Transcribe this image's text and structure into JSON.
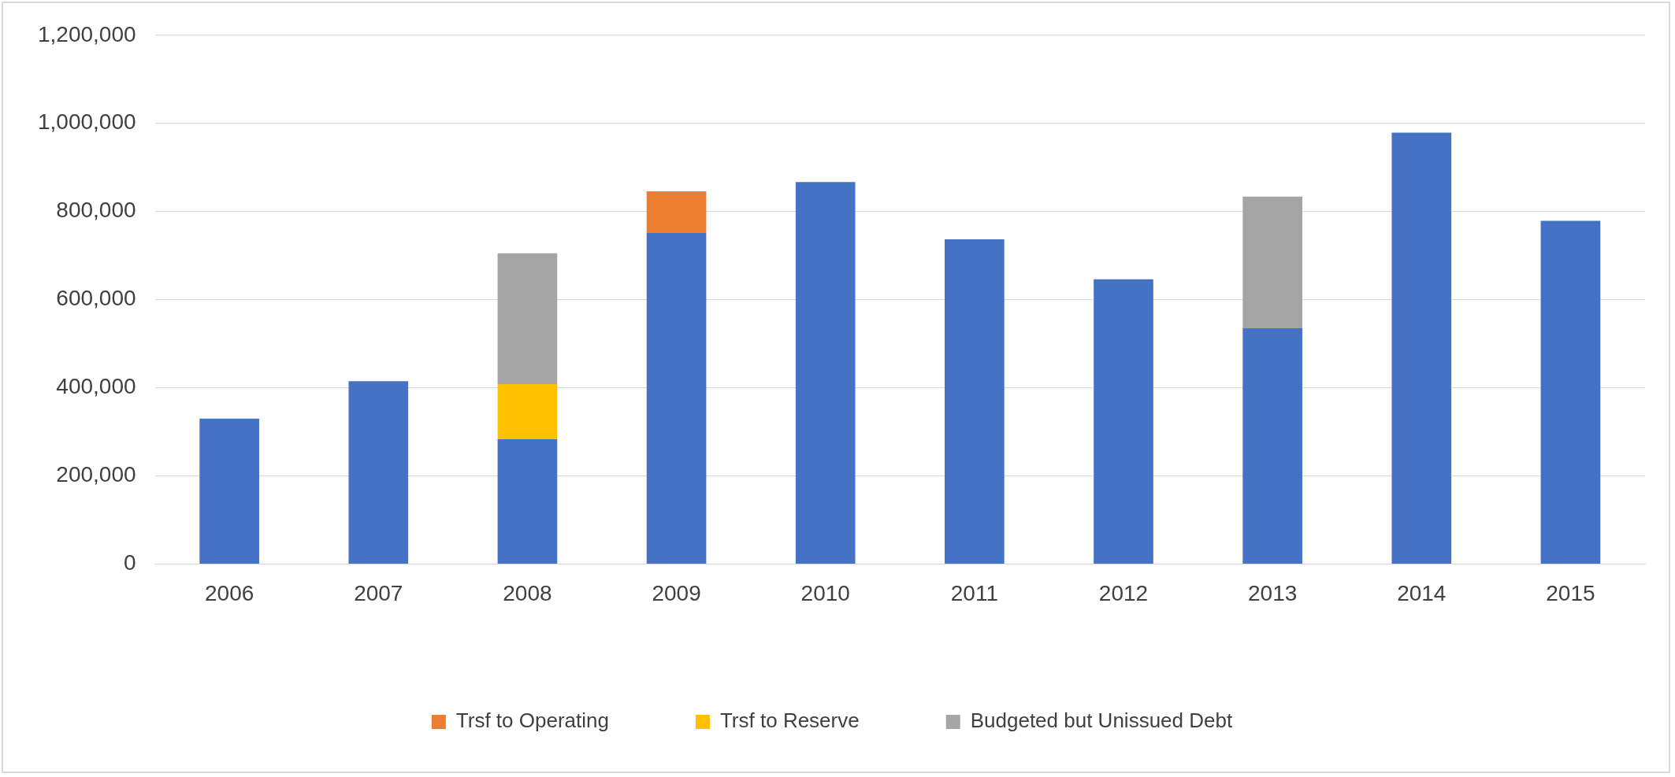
{
  "chart_data": {
    "type": "bar",
    "stacked": true,
    "categories": [
      "2006",
      "2007",
      "2008",
      "2009",
      "2010",
      "2011",
      "2012",
      "2013",
      "2014",
      "2015"
    ],
    "series": [
      {
        "color": "#4472c4",
        "values": [
          330000,
          415000,
          283000,
          751000,
          867000,
          737000,
          646000,
          535000,
          979000,
          779000
        ]
      },
      {
        "name": "Trsf to Operating",
        "color": "#ed7d31",
        "values": [
          null,
          null,
          null,
          95000,
          null,
          null,
          null,
          null,
          null,
          null
        ]
      },
      {
        "name": "Trsf to Reserve",
        "color": "#ffc000",
        "values": [
          null,
          null,
          125000,
          null,
          null,
          null,
          null,
          null,
          null,
          null
        ]
      },
      {
        "name": "Budgeted but Unissued Debt",
        "color": "#a5a5a5",
        "values": [
          null,
          null,
          297000,
          null,
          null,
          null,
          null,
          299000,
          null,
          null
        ]
      }
    ],
    "ylim": [
      0,
      1200000
    ],
    "yticks": [
      0,
      {
        "value": 200000,
        "label": "200,000"
      },
      {
        "value": 400000,
        "label": "400,000"
      },
      {
        "value": 600000,
        "label": "600,000"
      },
      {
        "value": 800000,
        "label": "800,000"
      },
      {
        "value": 1000000,
        "label": "1,000,000"
      },
      {
        "value": 1200000,
        "label": "1,200,000"
      }
    ],
    "grid": "y",
    "legend": "bottom"
  }
}
